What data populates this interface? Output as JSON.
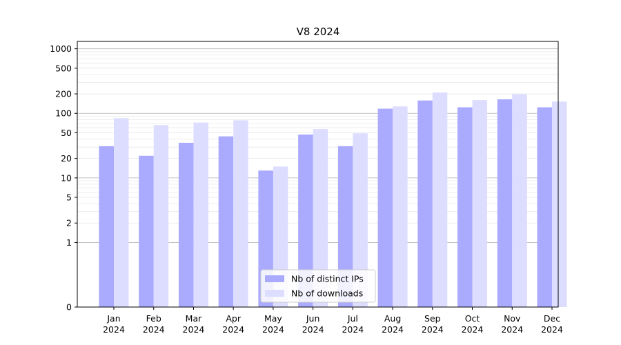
{
  "chart_data": {
    "type": "bar",
    "title": "V8 2024",
    "xlabel": "",
    "ylabel": "",
    "yscale": "symlog",
    "ylim": [
      0,
      1300
    ],
    "yticks": [
      0,
      1,
      2,
      5,
      10,
      20,
      50,
      100,
      200,
      500,
      1000
    ],
    "ytick_labels": [
      "0",
      "1",
      "2",
      "5",
      "10",
      "20",
      "50",
      "100",
      "200",
      "500",
      "1000"
    ],
    "categories": [
      {
        "month": "Jan",
        "year": "2024"
      },
      {
        "month": "Feb",
        "year": "2024"
      },
      {
        "month": "Mar",
        "year": "2024"
      },
      {
        "month": "Apr",
        "year": "2024"
      },
      {
        "month": "May",
        "year": "2024"
      },
      {
        "month": "Jun",
        "year": "2024"
      },
      {
        "month": "Jul",
        "year": "2024"
      },
      {
        "month": "Aug",
        "year": "2024"
      },
      {
        "month": "Sep",
        "year": "2024"
      },
      {
        "month": "Oct",
        "year": "2024"
      },
      {
        "month": "Nov",
        "year": "2024"
      },
      {
        "month": "Dec",
        "year": "2024"
      }
    ],
    "series": [
      {
        "name": "Nb of distinct IPs",
        "color": "#aaaaff",
        "values": [
          31,
          22,
          35,
          44,
          13,
          47,
          31,
          118,
          158,
          124,
          165,
          124
        ]
      },
      {
        "name": "Nb of downloads",
        "color": "#ddddff",
        "values": [
          84,
          66,
          72,
          78,
          15,
          57,
          49,
          128,
          210,
          160,
          198,
          152
        ]
      }
    ],
    "grid": true,
    "legend_position": "bottom-center"
  }
}
